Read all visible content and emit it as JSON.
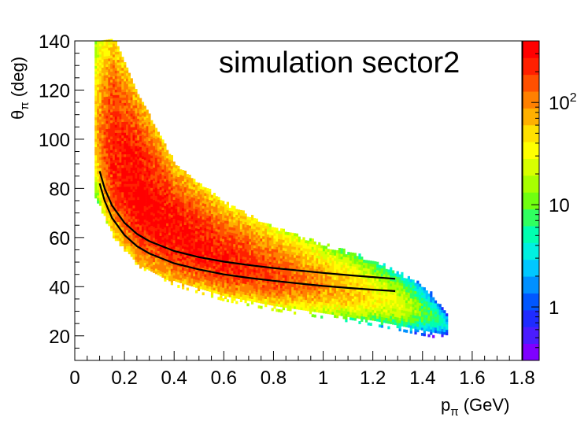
{
  "chart_data": {
    "type": "heatmap",
    "title": "simulation sector2",
    "xlabel": {
      "main": "p",
      "sub": "π",
      "unit": " (GeV)"
    },
    "ylabel": {
      "main": "θ",
      "sub": "π",
      "unit": " (deg)"
    },
    "xlim": [
      0,
      1.8
    ],
    "ylim": [
      10,
      140
    ],
    "x_ticks": [
      {
        "value": 0,
        "label": "0"
      },
      {
        "value": 0.2,
        "label": "0.2"
      },
      {
        "value": 0.4,
        "label": "0.4"
      },
      {
        "value": 0.6,
        "label": "0.6"
      },
      {
        "value": 0.8,
        "label": "0.8"
      },
      {
        "value": 1.0,
        "label": "1"
      },
      {
        "value": 1.2,
        "label": "1.2"
      },
      {
        "value": 1.4,
        "label": "1.4"
      },
      {
        "value": 1.6,
        "label": "1.6"
      },
      {
        "value": 1.8,
        "label": "1.8"
      }
    ],
    "y_ticks": [
      {
        "value": 20,
        "label": "20"
      },
      {
        "value": 40,
        "label": "40"
      },
      {
        "value": 60,
        "label": "60"
      },
      {
        "value": 80,
        "label": "80"
      },
      {
        "value": 100,
        "label": "100"
      },
      {
        "value": 120,
        "label": "120"
      },
      {
        "value": 140,
        "label": "140"
      }
    ],
    "color_scale": {
      "type": "log",
      "range": [
        0.3,
        400
      ],
      "ticks": [
        {
          "value": 1,
          "base": "1",
          "exp": ""
        },
        {
          "value": 10,
          "base": "10",
          "exp": ""
        },
        {
          "value": 100,
          "base": "10",
          "exp": "2"
        }
      ],
      "palette": [
        "#7f00ff",
        "#4b1cff",
        "#1f2bff",
        "#0057ff",
        "#0090ff",
        "#00c8ff",
        "#00f0e0",
        "#00ffb0",
        "#30ff60",
        "#70ff10",
        "#a8ff00",
        "#d8ff00",
        "#ffff00",
        "#ffe000",
        "#ffb000",
        "#ff8000",
        "#ff5000",
        "#ff2000",
        "#ff0000"
      ]
    },
    "density_band": {
      "description_points": [
        {
          "p": 0.08,
          "theta_low": 78,
          "theta_high": 140,
          "peak": 60
        },
        {
          "p": 0.15,
          "theta_low": 62,
          "theta_high": 140,
          "peak": 250
        },
        {
          "p": 0.25,
          "theta_low": 50,
          "theta_high": 116,
          "peak": 350
        },
        {
          "p": 0.4,
          "theta_low": 42,
          "theta_high": 88,
          "peak": 300
        },
        {
          "p": 0.6,
          "theta_low": 36,
          "theta_high": 72,
          "peak": 250
        },
        {
          "p": 0.8,
          "theta_low": 32,
          "theta_high": 62,
          "peak": 180
        },
        {
          "p": 1.0,
          "theta_low": 29,
          "theta_high": 55,
          "peak": 90
        },
        {
          "p": 1.2,
          "theta_low": 26,
          "theta_high": 49,
          "peak": 40
        },
        {
          "p": 1.4,
          "theta_low": 22,
          "theta_high": 39,
          "peak": 10
        },
        {
          "p": 1.5,
          "theta_low": 20,
          "theta_high": 28,
          "peak": 3
        }
      ]
    },
    "series": [
      {
        "type": "line",
        "color": "#000000",
        "x": [
          0.1,
          0.12,
          0.15,
          0.2,
          0.25,
          0.3,
          0.4,
          0.5,
          0.6,
          0.7,
          0.8,
          0.9,
          1.0,
          1.1,
          1.2,
          1.29
        ],
        "y": [
          87.0,
          80.0,
          73.0,
          66.0,
          61.5,
          58.5,
          54.5,
          52.0,
          50.2,
          48.8,
          47.6,
          46.6,
          45.6,
          44.7,
          43.9,
          43.2
        ]
      },
      {
        "type": "line",
        "color": "#000000",
        "x": [
          0.1,
          0.12,
          0.15,
          0.2,
          0.25,
          0.3,
          0.4,
          0.5,
          0.6,
          0.7,
          0.8,
          0.9,
          1.0,
          1.1,
          1.2,
          1.29
        ],
        "y": [
          82.0,
          75.0,
          68.0,
          61.0,
          56.5,
          53.5,
          49.5,
          47.0,
          45.0,
          43.6,
          42.4,
          41.3,
          40.3,
          39.5,
          38.8,
          38.2
        ]
      }
    ]
  }
}
